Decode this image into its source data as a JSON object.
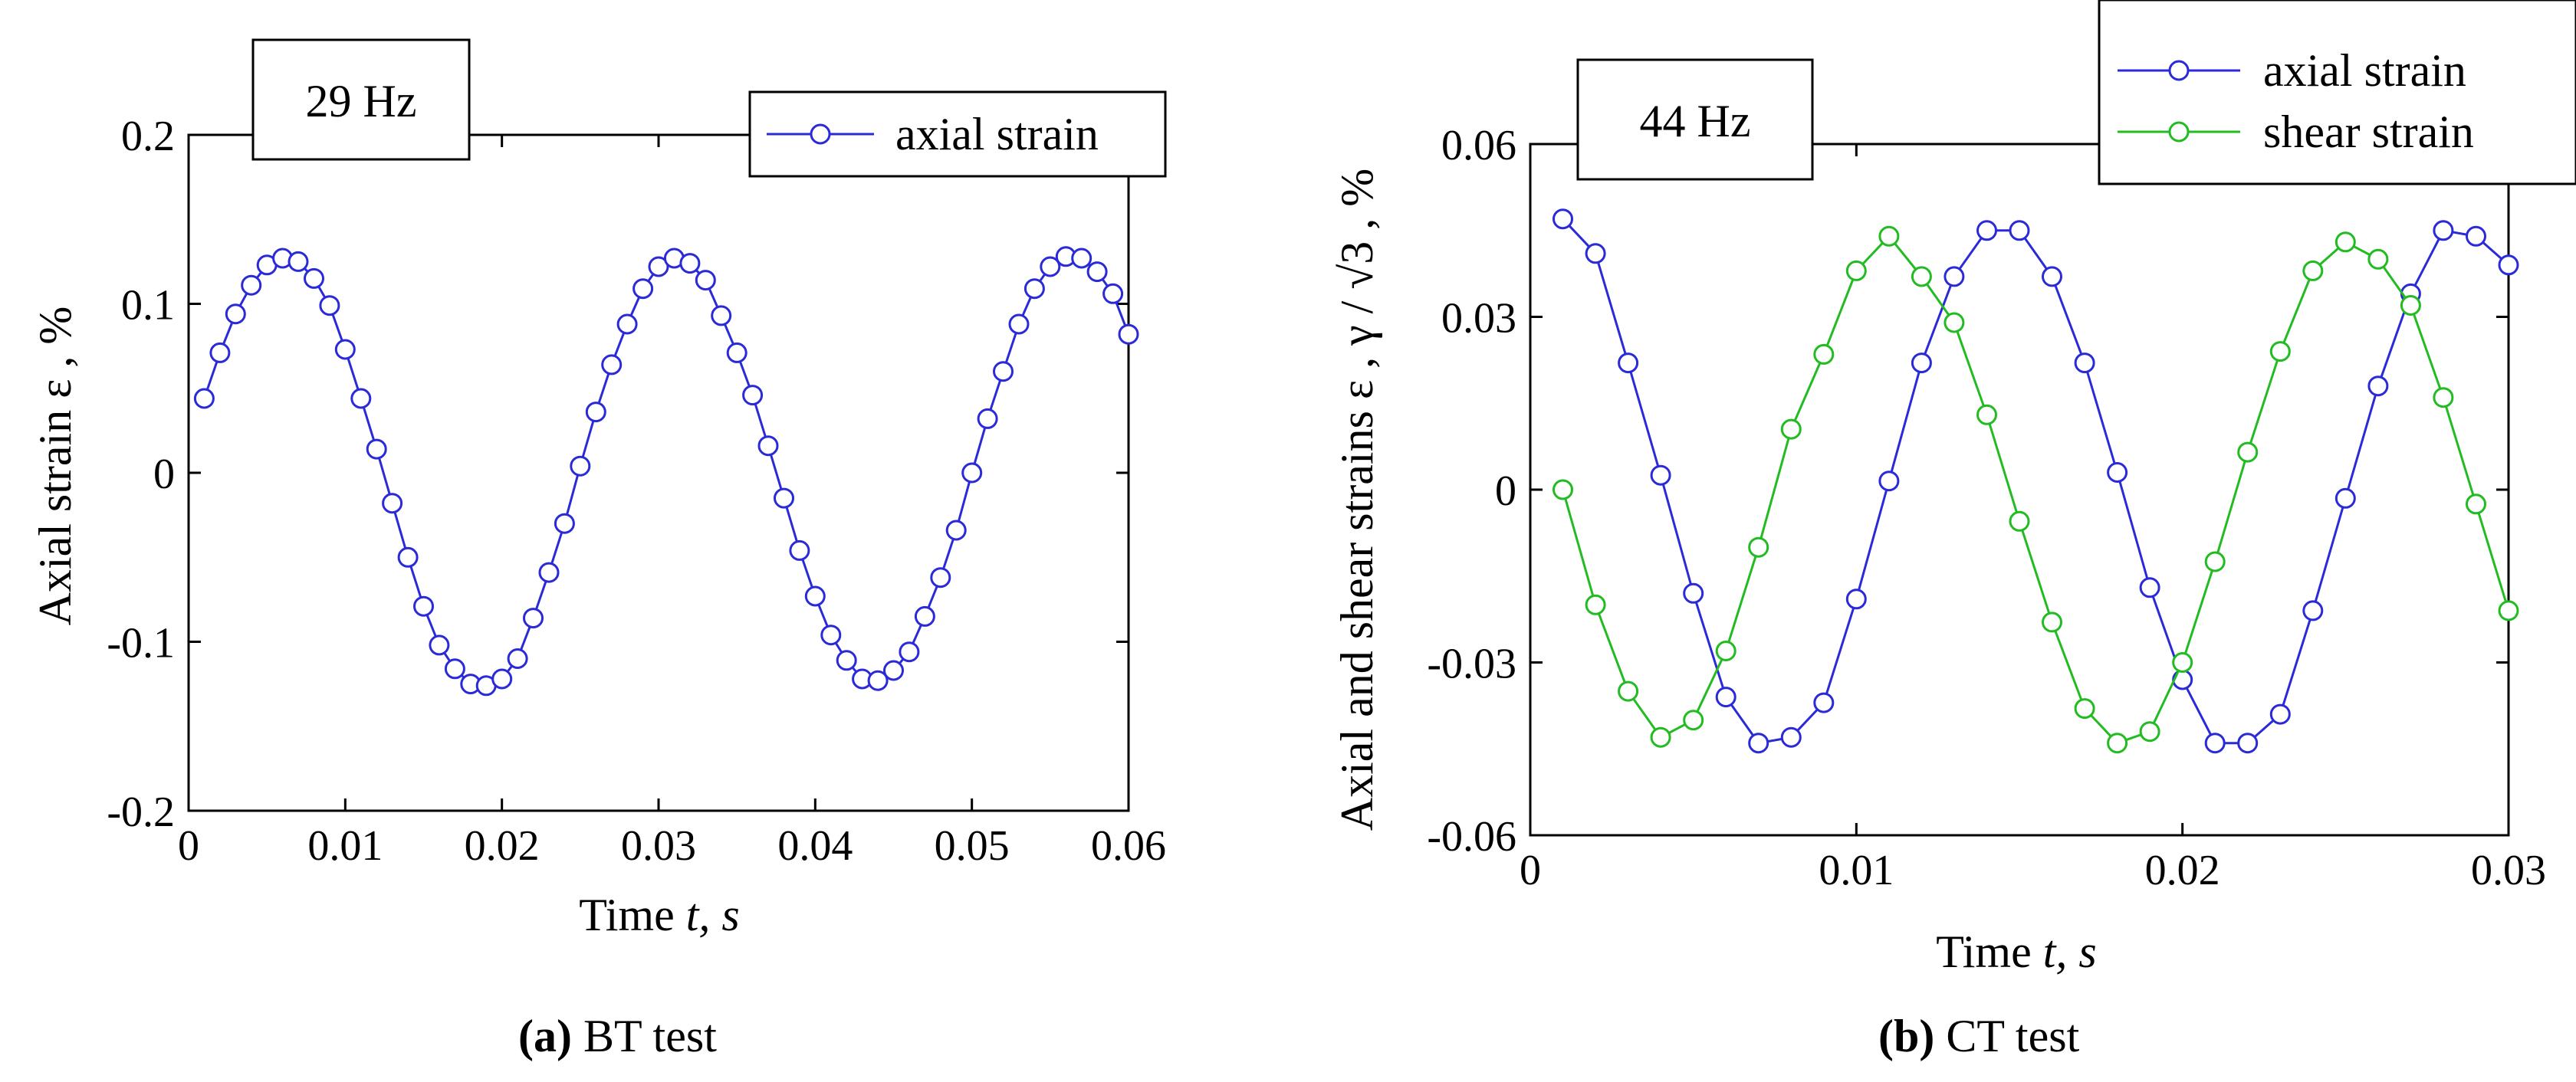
{
  "chart_data": [
    {
      "type": "line",
      "panel": "a",
      "caption_label": "(a)",
      "caption_text": " BT test",
      "annotation": "29 Hz",
      "xlabel_main": "Time",
      "xlabel_var": "t",
      "xlabel_unit": ", s",
      "ylabel": "Axial strain ε , %",
      "xlim": [
        0,
        0.06
      ],
      "ylim": [
        -0.2,
        0.2
      ],
      "xticks": [
        0,
        0.01,
        0.02,
        0.03,
        0.04,
        0.05,
        0.06
      ],
      "yticks": [
        -0.2,
        -0.1,
        0,
        0.1,
        0.2
      ],
      "xtick_labels": [
        "0",
        "0.01",
        "0.02",
        "0.03",
        "0.04",
        "0.05",
        "0.06"
      ],
      "ytick_labels": [
        "-0.2",
        "-0.1",
        "0",
        "0.1",
        "0.2"
      ],
      "legend_position": "top-right",
      "series": [
        {
          "name": "axial strain",
          "color": "#2a2ad8",
          "x": [
            0.001,
            0.002,
            0.003,
            0.004,
            0.005,
            0.006,
            0.007,
            0.008,
            0.009,
            0.01,
            0.011,
            0.012,
            0.013,
            0.014,
            0.015,
            0.016,
            0.017,
            0.018,
            0.019,
            0.02,
            0.021,
            0.022,
            0.023,
            0.024,
            0.025,
            0.026,
            0.027,
            0.028,
            0.029,
            0.03,
            0.031,
            0.032,
            0.033,
            0.034,
            0.035,
            0.036,
            0.037,
            0.038,
            0.039,
            0.04,
            0.041,
            0.042,
            0.043,
            0.044,
            0.045,
            0.046,
            0.047,
            0.048,
            0.049,
            0.05,
            0.051,
            0.052,
            0.053,
            0.054,
            0.055,
            0.056,
            0.057,
            0.058,
            0.059,
            0.06
          ],
          "y": [
            0.044,
            0.071,
            0.094,
            0.111,
            0.123,
            0.127,
            0.125,
            0.115,
            0.099,
            0.073,
            0.044,
            0.014,
            -0.018,
            -0.05,
            -0.079,
            -0.102,
            -0.116,
            -0.125,
            -0.126,
            -0.122,
            -0.11,
            -0.086,
            -0.059,
            -0.03,
            0.004,
            0.036,
            0.064,
            0.088,
            0.109,
            0.122,
            0.127,
            0.124,
            0.114,
            0.093,
            0.071,
            0.046,
            0.016,
            -0.015,
            -0.046,
            -0.073,
            -0.096,
            -0.111,
            -0.122,
            -0.123,
            -0.117,
            -0.106,
            -0.085,
            -0.062,
            -0.034,
            0.0,
            0.032,
            0.06,
            0.088,
            0.109,
            0.122,
            0.128,
            0.127,
            0.119,
            0.106,
            0.082
          ]
        }
      ]
    },
    {
      "type": "line",
      "panel": "b",
      "caption_label": "(b)",
      "caption_text": " CT test",
      "annotation": "44 Hz",
      "xlabel_main": "Time",
      "xlabel_var": "t",
      "xlabel_unit": ", s",
      "ylabel": "Axial and shear strains ε , γ / √3 ,  %",
      "xlim": [
        0,
        0.03
      ],
      "ylim": [
        -0.06,
        0.06
      ],
      "xticks": [
        0,
        0.01,
        0.02,
        0.03
      ],
      "yticks": [
        -0.06,
        -0.03,
        0,
        0.03,
        0.06
      ],
      "xtick_labels": [
        "0",
        "0.01",
        "0.02",
        "0.03"
      ],
      "ytick_labels": [
        "-0.06",
        "-0.03",
        "0",
        "0.03",
        "0.06"
      ],
      "legend_position": "top-right",
      "series": [
        {
          "name": "axial  strain",
          "color": "#2a2ad8",
          "x": [
            0.001,
            0.002,
            0.003,
            0.004,
            0.005,
            0.006,
            0.007,
            0.008,
            0.009,
            0.01,
            0.011,
            0.012,
            0.013,
            0.014,
            0.015,
            0.016,
            0.017,
            0.018,
            0.019,
            0.02,
            0.021,
            0.022,
            0.023,
            0.024,
            0.025,
            0.026,
            0.027,
            0.028,
            0.029,
            0.03
          ],
          "y": [
            0.047,
            0.041,
            0.022,
            0.0025,
            -0.018,
            -0.036,
            -0.044,
            -0.043,
            -0.037,
            -0.019,
            0.0015,
            0.022,
            0.037,
            0.045,
            0.045,
            0.037,
            0.022,
            0.003,
            -0.017,
            -0.033,
            -0.044,
            -0.044,
            -0.039,
            -0.021,
            -0.0015,
            0.018,
            0.034,
            0.045,
            0.044,
            0.039
          ]
        },
        {
          "name": "shear strain",
          "color": "#22bb22",
          "x": [
            0.001,
            0.002,
            0.003,
            0.004,
            0.005,
            0.006,
            0.007,
            0.008,
            0.009,
            0.01,
            0.011,
            0.012,
            0.013,
            0.014,
            0.015,
            0.016,
            0.017,
            0.018,
            0.019,
            0.02,
            0.021,
            0.022,
            0.023,
            0.024,
            0.025,
            0.026,
            0.027,
            0.028,
            0.029,
            0.03
          ],
          "y": [
            0.0,
            -0.02,
            -0.035,
            -0.043,
            -0.04,
            -0.028,
            -0.01,
            0.0105,
            0.0235,
            0.038,
            0.044,
            0.037,
            0.029,
            0.013,
            -0.0055,
            -0.023,
            -0.038,
            -0.044,
            -0.042,
            -0.03,
            -0.0125,
            0.0065,
            0.024,
            0.038,
            0.043,
            0.04,
            0.032,
            0.016,
            -0.0025,
            -0.021
          ]
        }
      ]
    }
  ]
}
